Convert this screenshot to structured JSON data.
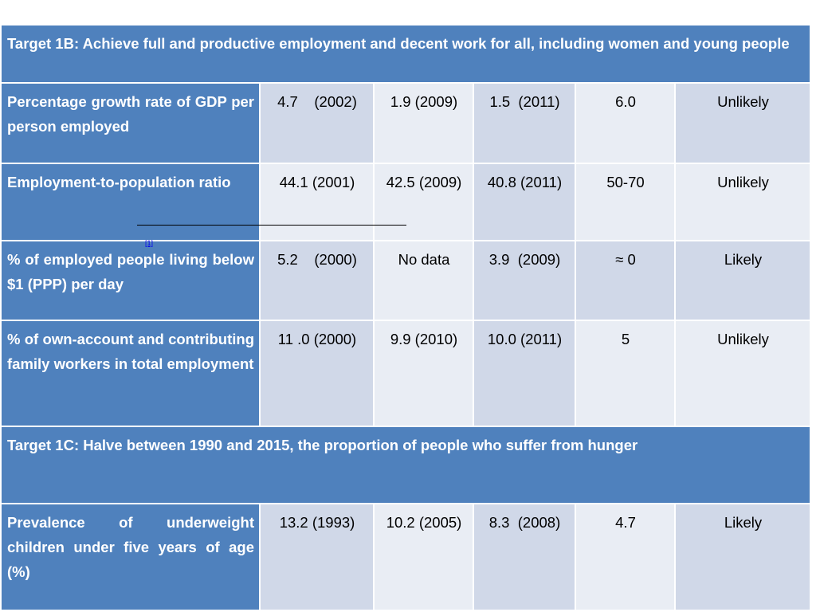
{
  "table": {
    "target_1b": "Target 1B: Achieve full and productive employment and decent work for all, including women and young people",
    "target_1c": "Target 1C: Halve between 1990 and 2015, the proportion of people who suffer from hunger",
    "rows": [
      {
        "indicator": "Percentage growth rate of GDP per person employed",
        "baseline": "4.7    (2002)",
        "mid": "1.9 (2009)",
        "current": "1.5  (2011)",
        "target": "6.0",
        "status": "Unlikely"
      },
      {
        "indicator": "Employment-to-population ratio",
        "baseline": "44.1 (2001)",
        "mid": "42.5 (2009)",
        "current": "40.8 (2011)",
        "target": "50-70",
        "status": "Unlikely"
      },
      {
        "indicator": "% of employed people living below $1 (PPP) per day",
        "baseline": "5.2    (2000)",
        "mid": "No data",
        "current": "3.9  (2009)",
        "target": "≈ 0",
        "status": "Likely"
      },
      {
        "indicator": "% of own-account and contributing family workers in total employment",
        "baseline": "11 .0 (2000)",
        "mid": "9.9 (2010)",
        "current": "10.0 (2011)",
        "target": "5",
        "status": "Unlikely"
      },
      {
        "indicator": "Prevalence of underweight children under five years of age (%)",
        "baseline": "13.2 (1993)",
        "mid": "10.2 (2005)",
        "current": "8.3  (2008)",
        "target": "4.7",
        "status": "Likely"
      }
    ]
  },
  "footnote_ref": "[1]",
  "colors": {
    "header_blue": "#4f81bd",
    "cell_dark": "#d0d8e8",
    "cell_light": "#e9edf4"
  }
}
